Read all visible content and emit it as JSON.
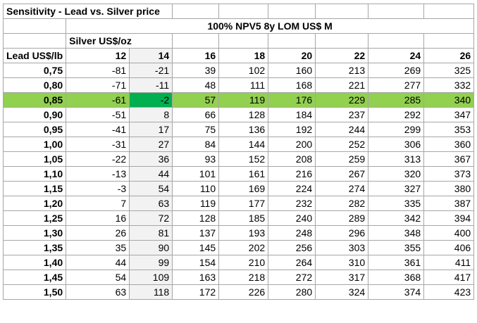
{
  "title": "Sensitivity - Lead vs. Silver price",
  "npv_header": "100% NPV5 8y LOM US$ M",
  "silver_label": "Silver US$/oz",
  "lead_label": "Lead US$/lb",
  "silver_prices": [
    "12",
    "14",
    "16",
    "18",
    "20",
    "22",
    "24",
    "26"
  ],
  "rows": [
    {
      "lead": "0,75",
      "values": [
        "-81",
        "-21",
        "39",
        "102",
        "160",
        "213",
        "269",
        "325"
      ]
    },
    {
      "lead": "0,80",
      "values": [
        "-71",
        "-11",
        "48",
        "111",
        "168",
        "221",
        "277",
        "332"
      ]
    },
    {
      "lead": "0,85",
      "values": [
        "-61",
        "-2",
        "57",
        "119",
        "176",
        "229",
        "285",
        "340"
      ]
    },
    {
      "lead": "0,90",
      "values": [
        "-51",
        "8",
        "66",
        "128",
        "184",
        "237",
        "292",
        "347"
      ]
    },
    {
      "lead": "0,95",
      "values": [
        "-41",
        "17",
        "75",
        "136",
        "192",
        "244",
        "299",
        "353"
      ]
    },
    {
      "lead": "1,00",
      "values": [
        "-31",
        "27",
        "84",
        "144",
        "200",
        "252",
        "306",
        "360"
      ]
    },
    {
      "lead": "1,05",
      "values": [
        "-22",
        "36",
        "93",
        "152",
        "208",
        "259",
        "313",
        "367"
      ]
    },
    {
      "lead": "1,10",
      "values": [
        "-13",
        "44",
        "101",
        "161",
        "216",
        "267",
        "320",
        "373"
      ]
    },
    {
      "lead": "1,15",
      "values": [
        "-3",
        "54",
        "110",
        "169",
        "224",
        "274",
        "327",
        "380"
      ]
    },
    {
      "lead": "1,20",
      "values": [
        "7",
        "63",
        "119",
        "177",
        "232",
        "282",
        "335",
        "387"
      ]
    },
    {
      "lead": "1,25",
      "values": [
        "16",
        "72",
        "128",
        "185",
        "240",
        "289",
        "342",
        "394"
      ]
    },
    {
      "lead": "1,30",
      "values": [
        "26",
        "81",
        "137",
        "193",
        "248",
        "296",
        "348",
        "400"
      ]
    },
    {
      "lead": "1,35",
      "values": [
        "35",
        "90",
        "145",
        "202",
        "256",
        "303",
        "355",
        "406"
      ]
    },
    {
      "lead": "1,40",
      "values": [
        "44",
        "99",
        "154",
        "210",
        "264",
        "310",
        "361",
        "411"
      ]
    },
    {
      "lead": "1,45",
      "values": [
        "54",
        "109",
        "163",
        "218",
        "272",
        "317",
        "368",
        "417"
      ]
    },
    {
      "lead": "1,50",
      "values": [
        "63",
        "118",
        "172",
        "226",
        "280",
        "324",
        "374",
        "423"
      ]
    }
  ],
  "highlight_row_index": 2,
  "highlight_col_index": 1,
  "colors": {
    "highlight_row": "#92d050",
    "highlight_cell": "#00b050",
    "shaded_column": "#f2f2f2"
  }
}
